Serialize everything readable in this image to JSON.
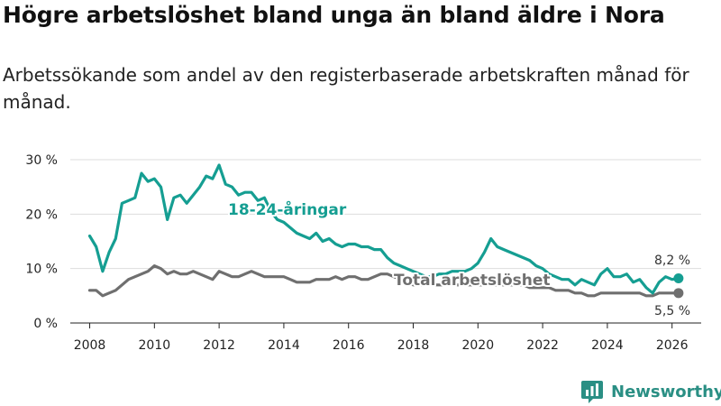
{
  "title": "Högre arbetslöshet bland unga än bland äldre i Nora",
  "subtitle": "Arbetssökande som andel av den registerbaserade arbetskraften månad för månad.",
  "brand": {
    "name": "Newsworthy"
  },
  "colors": {
    "youth": "#159e92",
    "total": "#6f6f6f",
    "grid": "#dddddd",
    "text": "#222222",
    "brand": "#2a8f84"
  },
  "chart_data": {
    "type": "line",
    "title": "Högre arbetslöshet bland unga än bland äldre i Nora",
    "xlabel": "",
    "ylabel": "",
    "xlim": [
      2007.4,
      2026.9
    ],
    "ylim": [
      0,
      30
    ],
    "x_ticks": [
      "2008",
      "2010",
      "2012",
      "2014",
      "2016",
      "2018",
      "2020",
      "2022",
      "2024",
      "2026"
    ],
    "y_ticks": [
      "0 %",
      "10 %",
      "20 %",
      "30 %"
    ],
    "grid": true,
    "series": [
      {
        "name": "18-24-åringar",
        "label": "18-24-åringar",
        "end_label": "8,2 %",
        "x": [
          2008.0,
          2008.2,
          2008.4,
          2008.6,
          2008.8,
          2009.0,
          2009.2,
          2009.4,
          2009.6,
          2009.8,
          2010.0,
          2010.2,
          2010.4,
          2010.6,
          2010.8,
          2011.0,
          2011.2,
          2011.4,
          2011.6,
          2011.8,
          2012.0,
          2012.2,
          2012.4,
          2012.6,
          2012.8,
          2013.0,
          2013.2,
          2013.4,
          2013.6,
          2013.8,
          2014.0,
          2014.2,
          2014.4,
          2014.6,
          2014.8,
          2015.0,
          2015.2,
          2015.4,
          2015.6,
          2015.8,
          2016.0,
          2016.2,
          2016.4,
          2016.6,
          2016.8,
          2017.0,
          2017.2,
          2017.4,
          2017.6,
          2017.8,
          2018.0,
          2018.2,
          2018.4,
          2018.6,
          2018.8,
          2019.0,
          2019.2,
          2019.4,
          2019.6,
          2019.8,
          2020.0,
          2020.2,
          2020.4,
          2020.6,
          2020.8,
          2021.0,
          2021.2,
          2021.4,
          2021.6,
          2021.8,
          2022.0,
          2022.2,
          2022.4,
          2022.6,
          2022.8,
          2023.0,
          2023.2,
          2023.4,
          2023.6,
          2023.8,
          2024.0,
          2024.2,
          2024.4,
          2024.6,
          2024.8,
          2025.0,
          2025.2,
          2025.4,
          2025.6,
          2025.8,
          2026.0,
          2026.2
        ],
        "values": [
          16.0,
          14.0,
          9.5,
          13.0,
          15.5,
          22.0,
          22.5,
          23.0,
          27.5,
          26.0,
          26.5,
          25.0,
          19.0,
          23.0,
          23.5,
          22.0,
          23.5,
          25.0,
          27.0,
          26.5,
          29.0,
          25.5,
          25.0,
          23.5,
          24.0,
          24.0,
          22.5,
          23.0,
          20.5,
          19.0,
          18.5,
          17.5,
          16.5,
          16.0,
          15.5,
          16.5,
          15.0,
          15.5,
          14.5,
          14.0,
          14.5,
          14.5,
          14.0,
          14.0,
          13.5,
          13.5,
          12.0,
          11.0,
          10.5,
          10.0,
          9.5,
          9.0,
          8.5,
          8.5,
          9.0,
          9.0,
          9.5,
          9.5,
          9.5,
          10.0,
          11.0,
          13.0,
          15.5,
          14.0,
          13.5,
          13.0,
          12.5,
          12.0,
          11.5,
          10.5,
          10.0,
          9.0,
          8.5,
          8.0,
          8.0,
          7.0,
          8.0,
          7.5,
          7.0,
          9.0,
          10.0,
          8.5,
          8.5,
          9.0,
          7.5,
          8.0,
          6.5,
          5.5,
          7.5,
          8.5,
          8.0,
          8.2
        ]
      },
      {
        "name": "Total arbetslöshet",
        "label": "Total arbetslöshet",
        "end_label": "5,5 %",
        "x": [
          2008.0,
          2008.2,
          2008.4,
          2008.6,
          2008.8,
          2009.0,
          2009.2,
          2009.4,
          2009.6,
          2009.8,
          2010.0,
          2010.2,
          2010.4,
          2010.6,
          2010.8,
          2011.0,
          2011.2,
          2011.4,
          2011.6,
          2011.8,
          2012.0,
          2012.2,
          2012.4,
          2012.6,
          2012.8,
          2013.0,
          2013.2,
          2013.4,
          2013.6,
          2013.8,
          2014.0,
          2014.2,
          2014.4,
          2014.6,
          2014.8,
          2015.0,
          2015.2,
          2015.4,
          2015.6,
          2015.8,
          2016.0,
          2016.2,
          2016.4,
          2016.6,
          2016.8,
          2017.0,
          2017.2,
          2017.4,
          2017.6,
          2017.8,
          2018.0,
          2018.2,
          2018.4,
          2018.6,
          2018.8,
          2019.0,
          2019.2,
          2019.4,
          2019.6,
          2019.8,
          2020.0,
          2020.2,
          2020.4,
          2020.6,
          2020.8,
          2021.0,
          2021.2,
          2021.4,
          2021.6,
          2021.8,
          2022.0,
          2022.2,
          2022.4,
          2022.6,
          2022.8,
          2023.0,
          2023.2,
          2023.4,
          2023.6,
          2023.8,
          2024.0,
          2024.2,
          2024.4,
          2024.6,
          2024.8,
          2025.0,
          2025.2,
          2025.4,
          2025.6,
          2025.8,
          2026.0,
          2026.2
        ],
        "values": [
          6.0,
          6.0,
          5.0,
          5.5,
          6.0,
          7.0,
          8.0,
          8.5,
          9.0,
          9.5,
          10.5,
          10.0,
          9.0,
          9.5,
          9.0,
          9.0,
          9.5,
          9.0,
          8.5,
          8.0,
          9.5,
          9.0,
          8.5,
          8.5,
          9.0,
          9.5,
          9.0,
          8.5,
          8.5,
          8.5,
          8.5,
          8.0,
          7.5,
          7.5,
          7.5,
          8.0,
          8.0,
          8.0,
          8.5,
          8.0,
          8.5,
          8.5,
          8.0,
          8.0,
          8.5,
          9.0,
          9.0,
          8.5,
          8.0,
          7.5,
          7.0,
          7.0,
          7.0,
          7.0,
          7.0,
          7.0,
          7.0,
          7.0,
          7.0,
          7.0,
          7.0,
          7.0,
          7.0,
          7.0,
          7.0,
          7.0,
          7.0,
          7.0,
          6.5,
          6.5,
          6.5,
          6.5,
          6.0,
          6.0,
          6.0,
          5.5,
          5.5,
          5.0,
          5.0,
          5.5,
          5.5,
          5.5,
          5.5,
          5.5,
          5.5,
          5.5,
          5.0,
          5.0,
          5.5,
          5.5,
          5.5,
          5.5
        ]
      }
    ]
  }
}
